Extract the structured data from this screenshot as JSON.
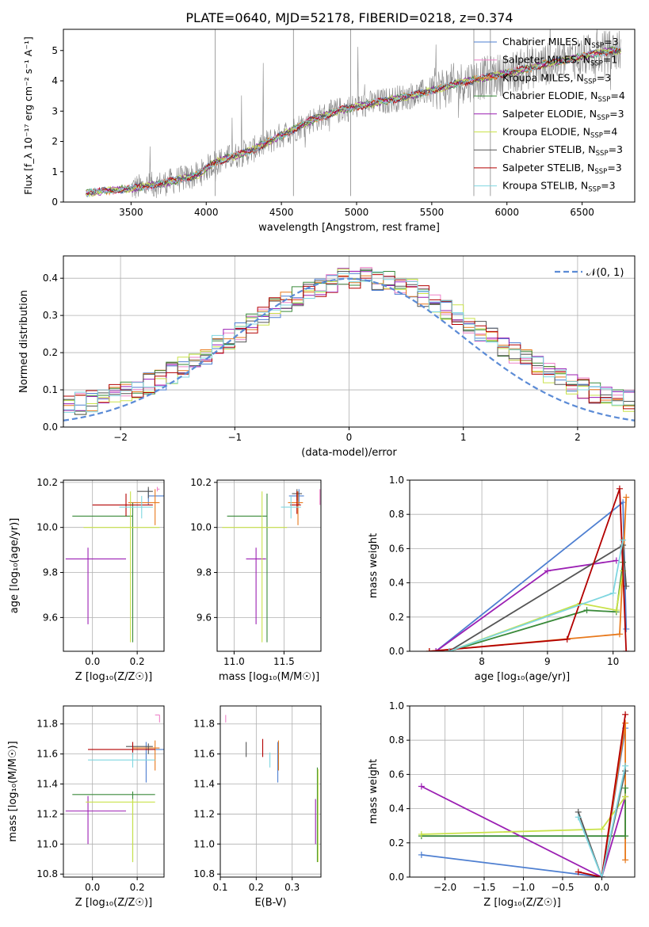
{
  "figure_title": "PLATE=0640, MJD=52178, FIBERID=0218, z=0.374",
  "colors": {
    "c0": "#4e7fd1",
    "c1": "#ee82c8",
    "c2": "#e8791c",
    "c3": "#3a8a3a",
    "c4": "#9b1fb3",
    "c5": "#c9e24a",
    "c6": "#555555",
    "c7": "#b30000",
    "c8": "#7fd6e0",
    "gauss": "#5b8bd6"
  },
  "chart_data": [
    {
      "type": "line",
      "panel": "spectrum",
      "xlabel": "wavelength [Angstrom, rest frame]",
      "ylabel": "Flux [f_λ 10⁻¹⁷ erg cm⁻² s⁻¹ A⁻¹]",
      "xlim": [
        3050,
        6850
      ],
      "ylim": [
        0,
        5.7
      ],
      "xticks": [
        3500,
        4000,
        4500,
        5000,
        5500,
        6000,
        6500
      ],
      "yticks": [
        0,
        1,
        2,
        3,
        4,
        5
      ],
      "grid": false,
      "legend_position": "top-right",
      "series": [
        {
          "name": "Chabrier MILES, N_SSP=3",
          "label_main": "Chabrier MILES, N",
          "label_sub": "SSP",
          "label_tail": "=3",
          "color_key": "c0"
        },
        {
          "name": "Salpeter MILES, N_SSP=1",
          "label_main": "Salpeter MILES, N",
          "label_sub": "SSP",
          "label_tail": "=1",
          "color_key": "c1"
        },
        {
          "name": "Kroupa MILES, N_SSP=3",
          "label_main": "Kroupa MILES, N",
          "label_sub": "SSP",
          "label_tail": "=3",
          "color_key": "c2"
        },
        {
          "name": "Chabrier ELODIE, N_SSP=4",
          "label_main": "Chabrier ELODIE, N",
          "label_sub": "SSP",
          "label_tail": "=4",
          "color_key": "c3"
        },
        {
          "name": "Salpeter ELODIE, N_SSP=3",
          "label_main": "Salpeter ELODIE, N",
          "label_sub": "SSP",
          "label_tail": "=3",
          "color_key": "c4"
        },
        {
          "name": "Kroupa ELODIE, N_SSP=4",
          "label_main": "Kroupa ELODIE, N",
          "label_sub": "SSP",
          "label_tail": "=4",
          "color_key": "c5"
        },
        {
          "name": "Chabrier STELIB, N_SSP=3",
          "label_main": "Chabrier STELIB, N",
          "label_sub": "SSP",
          "label_tail": "=3",
          "color_key": "c6"
        },
        {
          "name": "Salpeter STELIB, N_SSP=3",
          "label_main": "Salpeter STELIB, N",
          "label_sub": "SSP",
          "label_tail": "=3",
          "color_key": "c7"
        },
        {
          "name": "Kroupa STELIB, N_SSP=3",
          "label_main": "Kroupa STELIB, N",
          "label_sub": "SSP",
          "label_tail": "=3",
          "color_key": "c8"
        }
      ],
      "continuum_anchors": [
        [
          3200,
          0.3
        ],
        [
          3500,
          0.45
        ],
        [
          3700,
          0.6
        ],
        [
          3950,
          0.9
        ],
        [
          4050,
          1.3
        ],
        [
          4300,
          1.7
        ],
        [
          4500,
          2.2
        ],
        [
          4700,
          2.7
        ],
        [
          4900,
          3.05
        ],
        [
          5100,
          3.25
        ],
        [
          5400,
          3.55
        ],
        [
          5700,
          3.95
        ],
        [
          6000,
          4.25
        ],
        [
          6300,
          4.6
        ],
        [
          6700,
          5.0
        ]
      ],
      "data_start_wavelength": 3500
    },
    {
      "type": "histogram",
      "panel": "residuals",
      "xlabel": "(data-model)/error",
      "ylabel": "Normed distribution",
      "xlim": [
        -2.5,
        2.5
      ],
      "ylim": [
        0,
        0.46
      ],
      "xticks": [
        -2,
        -1,
        0,
        1,
        2
      ],
      "yticks": [
        0.0,
        0.1,
        0.2,
        0.3,
        0.4
      ],
      "grid": true,
      "legend_position": "top-right",
      "legend": "𝒩(0, 1)",
      "bin_width": 0.1,
      "reference_curve": "normal pdf, mean 0, sigma 1, dashed"
    },
    {
      "type": "scatter",
      "panel": "age-vs-Z",
      "xlabel": "Z [log₁₀(Z/Z☉)]",
      "ylabel": "age  [log₁₀(age/yr)]",
      "xlim": [
        -0.13,
        0.32
      ],
      "ylim": [
        9.45,
        10.21
      ],
      "xticks": [
        0.0,
        0.2
      ],
      "yticks": [
        9.6,
        9.8,
        10.0,
        10.2
      ],
      "grid": true,
      "errorbars": [
        {
          "color_key": "c0",
          "x": 0.25,
          "xerr": [
            0.0,
            0.1
          ],
          "y": 10.14,
          "yerr": [
            0.04,
            0.03
          ]
        },
        {
          "color_key": "c1",
          "x": 0.29,
          "xerr": [
            0.0,
            0.01
          ],
          "y": 10.17,
          "yerr": [
            0.01,
            0.01
          ]
        },
        {
          "color_key": "c2",
          "x": 0.28,
          "xerr": [
            0.12,
            0.02
          ],
          "y": 10.11,
          "yerr": [
            0.1,
            0.06
          ]
        },
        {
          "color_key": "c3",
          "x": 0.18,
          "xerr": [
            0.27,
            0.0
          ],
          "y": 10.05,
          "yerr": [
            0.56,
            0.06
          ]
        },
        {
          "color_key": "c4",
          "x": -0.02,
          "xerr": [
            0.1,
            0.17
          ],
          "y": 9.86,
          "yerr": [
            0.29,
            0.05
          ]
        },
        {
          "color_key": "c5",
          "x": 0.17,
          "xerr": [
            0.21,
            0.13
          ],
          "y": 10.0,
          "yerr": [
            0.51,
            0.16
          ]
        },
        {
          "color_key": "c6",
          "x": 0.25,
          "xerr": [
            0.05,
            0.02
          ],
          "y": 10.16,
          "yerr": [
            0.03,
            0.02
          ]
        },
        {
          "color_key": "c7",
          "x": 0.15,
          "xerr": [
            0.15,
            0.12
          ],
          "y": 10.1,
          "yerr": [
            0.05,
            0.05
          ]
        },
        {
          "color_key": "c8",
          "x": 0.22,
          "xerr": [
            0.1,
            0.05
          ],
          "y": 10.09,
          "yerr": [
            0.05,
            0.05
          ]
        }
      ]
    },
    {
      "type": "scatter",
      "panel": "age-vs-mass",
      "xlabel": "mass [log₁₀(M/M☉)]",
      "ylabel": "",
      "xlim": [
        10.83,
        11.87
      ],
      "ylim": [
        9.45,
        10.21
      ],
      "xticks": [
        11.0,
        11.5
      ],
      "yticks": [
        9.6,
        9.8,
        10.0,
        10.2
      ],
      "grid": true,
      "errorbars": [
        {
          "color_key": "c0",
          "x": 11.65,
          "xerr": [
            0.1,
            0.05
          ],
          "y": 10.14,
          "yerr": [
            0.04,
            0.03
          ]
        },
        {
          "color_key": "c1",
          "x": 11.86,
          "xerr": [
            0.0,
            0.0
          ],
          "y": 10.17,
          "yerr": [
            0.07,
            0.0
          ]
        },
        {
          "color_key": "c2",
          "x": 11.64,
          "xerr": [
            0.1,
            0.05
          ],
          "y": 10.11,
          "yerr": [
            0.1,
            0.05
          ]
        },
        {
          "color_key": "c3",
          "x": 11.33,
          "xerr": [
            0.4,
            0.0
          ],
          "y": 10.05,
          "yerr": [
            0.56,
            0.1
          ]
        },
        {
          "color_key": "c4",
          "x": 11.22,
          "xerr": [
            0.1,
            0.1
          ],
          "y": 9.86,
          "yerr": [
            0.29,
            0.05
          ]
        },
        {
          "color_key": "c5",
          "x": 11.28,
          "xerr": [
            0.4,
            0.25
          ],
          "y": 10.0,
          "yerr": [
            0.51,
            0.16
          ]
        },
        {
          "color_key": "c6",
          "x": 11.63,
          "xerr": [
            0.05,
            0.05
          ],
          "y": 10.15,
          "yerr": [
            0.03,
            0.02
          ]
        },
        {
          "color_key": "c7",
          "x": 11.63,
          "xerr": [
            0.07,
            0.04
          ],
          "y": 10.1,
          "yerr": [
            0.04,
            0.06
          ]
        },
        {
          "color_key": "c8",
          "x": 11.57,
          "xerr": [
            0.1,
            0.1
          ],
          "y": 10.09,
          "yerr": [
            0.05,
            0.05
          ]
        }
      ]
    },
    {
      "type": "line",
      "panel": "mass-weight-vs-age",
      "xlabel": "age  [log₁₀(age/yr)]",
      "ylabel": "mass weight",
      "xlim": [
        6.9,
        10.33
      ],
      "ylim": [
        0,
        1.0
      ],
      "xticks": [
        8,
        9,
        10
      ],
      "yticks": [
        0.0,
        0.2,
        0.4,
        0.6,
        0.8,
        1.0
      ],
      "grid": true,
      "series": [
        {
          "color_key": "c0",
          "points": [
            [
              7.3,
              0.0
            ],
            [
              10.15,
              0.87
            ],
            [
              10.2,
              0.13
            ]
          ]
        },
        {
          "color_key": "c2",
          "points": [
            [
              7.2,
              0.0
            ],
            [
              10.1,
              0.1
            ],
            [
              10.2,
              0.9
            ]
          ]
        },
        {
          "color_key": "c3",
          "points": [
            [
              7.5,
              0.0
            ],
            [
              9.6,
              0.24
            ],
            [
              10.05,
              0.23
            ],
            [
              10.15,
              0.52
            ]
          ]
        },
        {
          "color_key": "c4",
          "points": [
            [
              7.3,
              0.0
            ],
            [
              9.0,
              0.47
            ],
            [
              10.05,
              0.53
            ]
          ]
        },
        {
          "color_key": "c5",
          "points": [
            [
              7.5,
              0.0
            ],
            [
              9.5,
              0.28
            ],
            [
              10.05,
              0.24
            ],
            [
              10.15,
              0.47
            ]
          ]
        },
        {
          "color_key": "c6",
          "points": [
            [
              7.5,
              0.0
            ],
            [
              10.15,
              0.62
            ],
            [
              10.2,
              0.38
            ]
          ]
        },
        {
          "color_key": "c7",
          "points": [
            [
              7.2,
              0.0
            ],
            [
              9.3,
              0.07
            ],
            [
              10.1,
              0.95
            ],
            [
              10.2,
              0.0
            ]
          ]
        },
        {
          "color_key": "c8",
          "points": [
            [
              7.5,
              0.0
            ],
            [
              10.0,
              0.34
            ],
            [
              10.15,
              0.65
            ]
          ]
        }
      ]
    },
    {
      "type": "scatter",
      "panel": "mass-vs-Z",
      "xlabel": "Z [log₁₀(Z/Z☉)]",
      "ylabel": "mass [log₁₀(M/M☉)]",
      "xlim": [
        -0.13,
        0.32
      ],
      "ylim": [
        10.78,
        11.92
      ],
      "xticks": [
        0.0,
        0.2
      ],
      "yticks": [
        10.8,
        11.0,
        11.2,
        11.4,
        11.6,
        11.8
      ],
      "grid": true,
      "errorbars": [
        {
          "color_key": "c0",
          "x": 0.24,
          "xerr": [
            0.0,
            0.1
          ],
          "y": 11.63,
          "yerr": [
            0.22,
            0.05
          ]
        },
        {
          "color_key": "c1",
          "x": 0.3,
          "xerr": [
            0.02,
            0.0
          ],
          "y": 11.86,
          "yerr": [
            0.05,
            0.0
          ]
        },
        {
          "color_key": "c2",
          "x": 0.28,
          "xerr": [
            0.1,
            0.02
          ],
          "y": 11.64,
          "yerr": [
            0.15,
            0.05
          ]
        },
        {
          "color_key": "c3",
          "x": 0.18,
          "xerr": [
            0.27,
            0.1
          ],
          "y": 11.33,
          "yerr": [
            0.45,
            0.02
          ]
        },
        {
          "color_key": "c4",
          "x": -0.02,
          "xerr": [
            0.1,
            0.17
          ],
          "y": 11.22,
          "yerr": [
            0.22,
            0.1
          ]
        },
        {
          "color_key": "c5",
          "x": 0.18,
          "xerr": [
            0.21,
            0.1
          ],
          "y": 11.28,
          "yerr": [
            0.4,
            0.02
          ]
        },
        {
          "color_key": "c6",
          "x": 0.25,
          "xerr": [
            0.1,
            0.02
          ],
          "y": 11.65,
          "yerr": [
            0.05,
            0.02
          ]
        },
        {
          "color_key": "c7",
          "x": 0.18,
          "xerr": [
            0.2,
            0.1
          ],
          "y": 11.63,
          "yerr": [
            0.05,
            0.05
          ]
        },
        {
          "color_key": "c8",
          "x": 0.18,
          "xerr": [
            0.2,
            0.1
          ],
          "y": 11.56,
          "yerr": [
            0.05,
            0.05
          ]
        }
      ]
    },
    {
      "type": "scatter",
      "panel": "mass-vs-EBV",
      "xlabel": "E(B-V)",
      "ylabel": "",
      "xlim": [
        0.1,
        0.38
      ],
      "ylim": [
        10.78,
        11.92
      ],
      "xticks": [
        0.1,
        0.2,
        0.3
      ],
      "yticks": [
        10.8,
        11.0,
        11.2,
        11.4,
        11.6,
        11.8
      ],
      "grid": true,
      "errorbars": [
        {
          "color_key": "c0",
          "x": 0.26,
          "y": 11.63,
          "yerr": [
            0.22,
            0.05
          ]
        },
        {
          "color_key": "c1",
          "x": 0.115,
          "y": 11.86,
          "yerr": [
            0.05,
            0.0
          ]
        },
        {
          "color_key": "c2",
          "x": 0.262,
          "y": 11.64,
          "yerr": [
            0.15,
            0.05
          ]
        },
        {
          "color_key": "c3",
          "x": 0.37,
          "y": 11.33,
          "yerr": [
            0.45,
            0.18
          ]
        },
        {
          "color_key": "c4",
          "x": 0.365,
          "y": 11.22,
          "yerr": [
            0.22,
            0.08
          ]
        },
        {
          "color_key": "c5",
          "x": 0.372,
          "y": 11.28,
          "yerr": [
            0.4,
            0.22
          ]
        },
        {
          "color_key": "c6",
          "x": 0.172,
          "y": 11.63,
          "yerr": [
            0.05,
            0.05
          ]
        },
        {
          "color_key": "c7",
          "x": 0.218,
          "y": 11.63,
          "yerr": [
            0.05,
            0.07
          ]
        },
        {
          "color_key": "c8",
          "x": 0.238,
          "y": 11.56,
          "yerr": [
            0.05,
            0.05
          ]
        }
      ]
    },
    {
      "type": "line",
      "panel": "mass-weight-vs-Z",
      "xlabel": "Z [log₁₀(Z/Z☉)]",
      "ylabel": "mass weight",
      "xlim": [
        -2.45,
        0.42
      ],
      "ylim": [
        0,
        1.0
      ],
      "xticks": [
        -2.0,
        -1.5,
        -1.0,
        -0.5,
        0.0
      ],
      "yticks": [
        0.0,
        0.2,
        0.4,
        0.6,
        0.8,
        1.0
      ],
      "grid": true,
      "series": [
        {
          "color_key": "c0",
          "points": [
            [
              -2.3,
              0.13
            ],
            [
              0.0,
              0.0
            ],
            [
              0.3,
              0.87
            ]
          ]
        },
        {
          "color_key": "c2",
          "points": [
            [
              0.0,
              0.0
            ],
            [
              0.3,
              0.9
            ],
            [
              0.3,
              0.1
            ]
          ]
        },
        {
          "color_key": "c3",
          "points": [
            [
              -2.3,
              0.24
            ],
            [
              0.3,
              0.24
            ],
            [
              0.3,
              0.52
            ]
          ]
        },
        {
          "color_key": "c4",
          "points": [
            [
              -2.3,
              0.53
            ],
            [
              0.0,
              0.0
            ],
            [
              0.3,
              0.47
            ]
          ]
        },
        {
          "color_key": "c5",
          "points": [
            [
              -2.3,
              0.25
            ],
            [
              0.0,
              0.28
            ],
            [
              0.3,
              0.47
            ]
          ]
        },
        {
          "color_key": "c6",
          "points": [
            [
              -0.3,
              0.38
            ],
            [
              0.0,
              0.0
            ],
            [
              0.3,
              0.62
            ]
          ]
        },
        {
          "color_key": "c7",
          "points": [
            [
              -0.3,
              0.03
            ],
            [
              0.0,
              0.0
            ],
            [
              0.3,
              0.95
            ]
          ]
        },
        {
          "color_key": "c8",
          "points": [
            [
              -0.3,
              0.35
            ],
            [
              0.0,
              0.0
            ],
            [
              0.3,
              0.65
            ]
          ]
        }
      ]
    }
  ]
}
